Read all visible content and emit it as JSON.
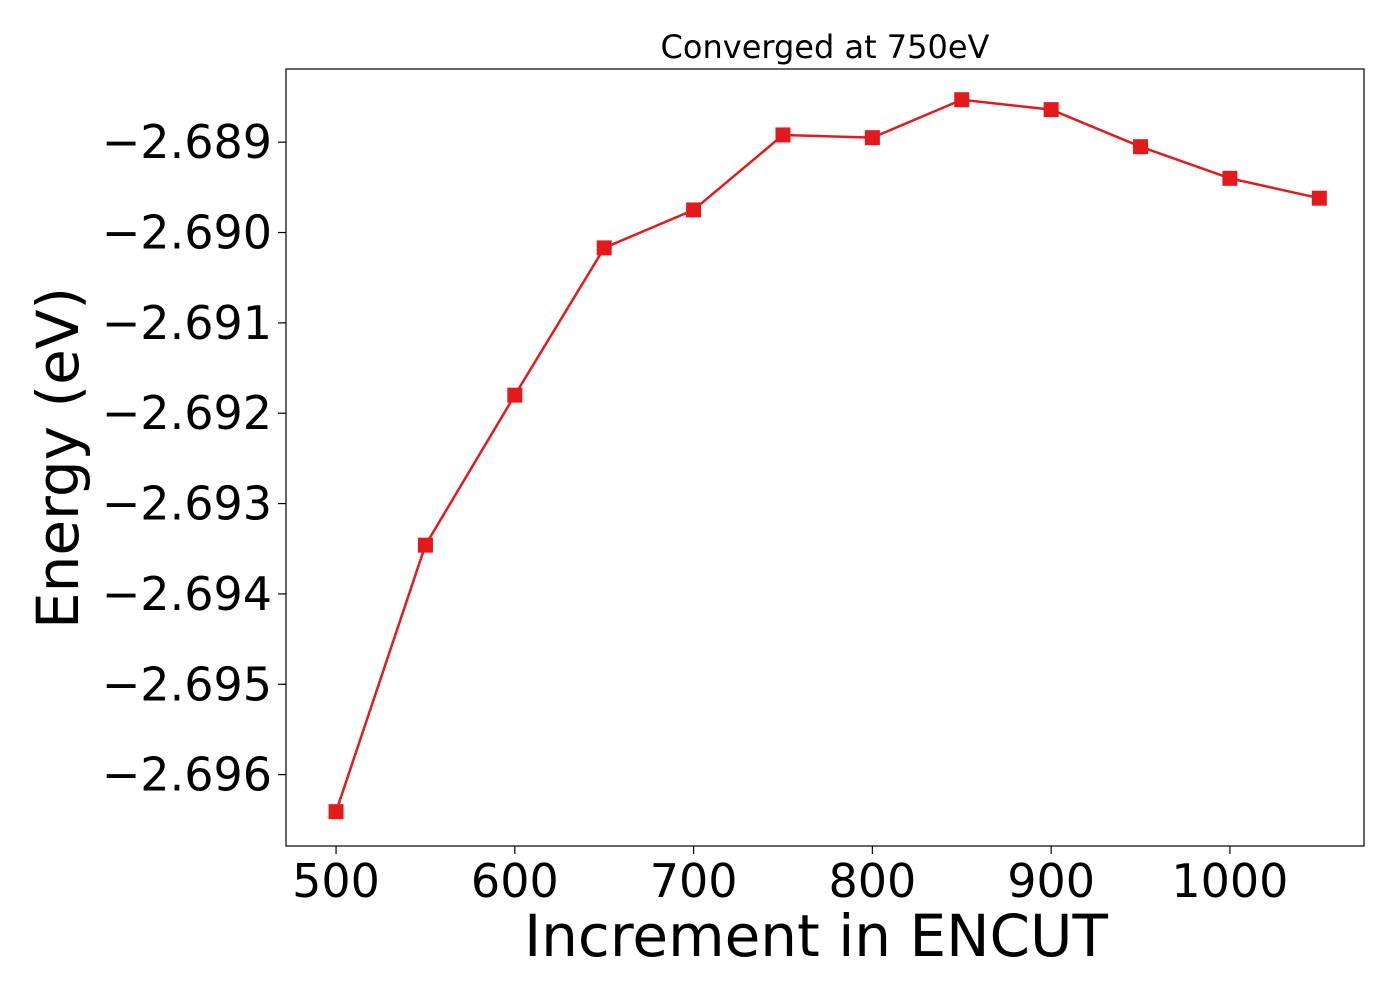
{
  "chart_data": {
    "type": "line",
    "title": "Converged at 750eV",
    "xlabel": "Increment in ENCUT",
    "ylabel": "Energy (eV)",
    "xlim": [
      472,
      1075
    ],
    "ylim": [
      -2.69679,
      -2.68819
    ],
    "grid": false,
    "x_ticks": [
      500,
      600,
      700,
      800,
      900,
      1000
    ],
    "x_tick_labels": [
      "500",
      "600",
      "700",
      "800",
      "900",
      "1000"
    ],
    "y_ticks": [
      -2.689,
      -2.69,
      -2.691,
      -2.692,
      -2.693,
      -2.694,
      -2.695,
      -2.696
    ],
    "y_tick_labels": [
      "−2.689",
      "−2.690",
      "−2.691",
      "−2.692",
      "−2.693",
      "−2.694",
      "−2.695",
      "−2.696"
    ],
    "series": [
      {
        "color": "#e31a1c",
        "marker": "square",
        "x": [
          500,
          550,
          600,
          650,
          700,
          750,
          800,
          850,
          900,
          950,
          1000,
          1050
        ],
        "y": [
          -2.69641,
          -2.69346,
          -2.6918,
          -2.69017,
          -2.68975,
          -2.68892,
          -2.68895,
          -2.68853,
          -2.68864,
          -2.68905,
          -2.6894,
          -2.68962
        ]
      }
    ]
  }
}
